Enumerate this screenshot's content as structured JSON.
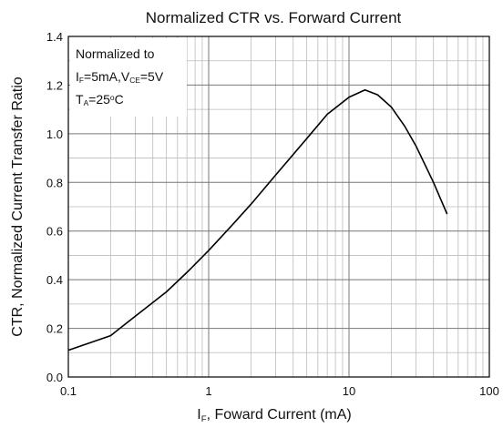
{
  "chart_data": {
    "type": "line",
    "title": "Normalized CTR vs. Forward Current",
    "y_label": "CTR, Normalized Current Transfer Ratio",
    "x_label": [
      {
        "text": "I"
      },
      {
        "text": "F",
        "sub": true
      },
      {
        "text": ", Foward Current (mA)"
      }
    ],
    "annotation": [
      [
        {
          "text": "Normalized to"
        }
      ],
      [
        {
          "text": "I"
        },
        {
          "text": "F",
          "sub": true
        },
        {
          "text": "=5mA,V"
        },
        {
          "text": "CE",
          "sub": true
        },
        {
          "text": "=5V"
        }
      ],
      [
        {
          "text": "T"
        },
        {
          "text": "A",
          "sub": true
        },
        {
          "text": "=25"
        },
        {
          "text": "o",
          "sup": true
        },
        {
          "text": "C"
        }
      ]
    ],
    "x_log": true,
    "grid": true,
    "xlim": [
      0.1,
      100
    ],
    "xticks": [
      0.1,
      1,
      10,
      100
    ],
    "x_minor_ticks": [
      0.2,
      0.3,
      0.4,
      0.5,
      0.6,
      0.7,
      0.8,
      0.9,
      2,
      3,
      4,
      5,
      6,
      7,
      8,
      9,
      20,
      30,
      40,
      50,
      60,
      70,
      80,
      90
    ],
    "ylim": [
      0,
      1.4
    ],
    "yticks": [
      {
        "value": 0,
        "label": "0.0"
      },
      0.2,
      0.4,
      0.6,
      0.8,
      {
        "value": 1,
        "label": "1.0"
      },
      1.2,
      1.4
    ],
    "y_minor_ticks": [
      0.1,
      0.3,
      0.5,
      0.7,
      0.9,
      1.1,
      1.3
    ],
    "series": [
      {
        "color": "#000000",
        "x": [
          0.1,
          0.2,
          0.3,
          0.5,
          0.7,
          1,
          1.5,
          2,
          3,
          5,
          7,
          10,
          13,
          16,
          20,
          25,
          30,
          40,
          50
        ],
        "values": [
          0.11,
          0.17,
          0.25,
          0.35,
          0.43,
          0.52,
          0.63,
          0.71,
          0.83,
          0.98,
          1.08,
          1.15,
          1.18,
          1.16,
          1.11,
          1.03,
          0.95,
          0.8,
          0.67
        ]
      }
    ]
  }
}
